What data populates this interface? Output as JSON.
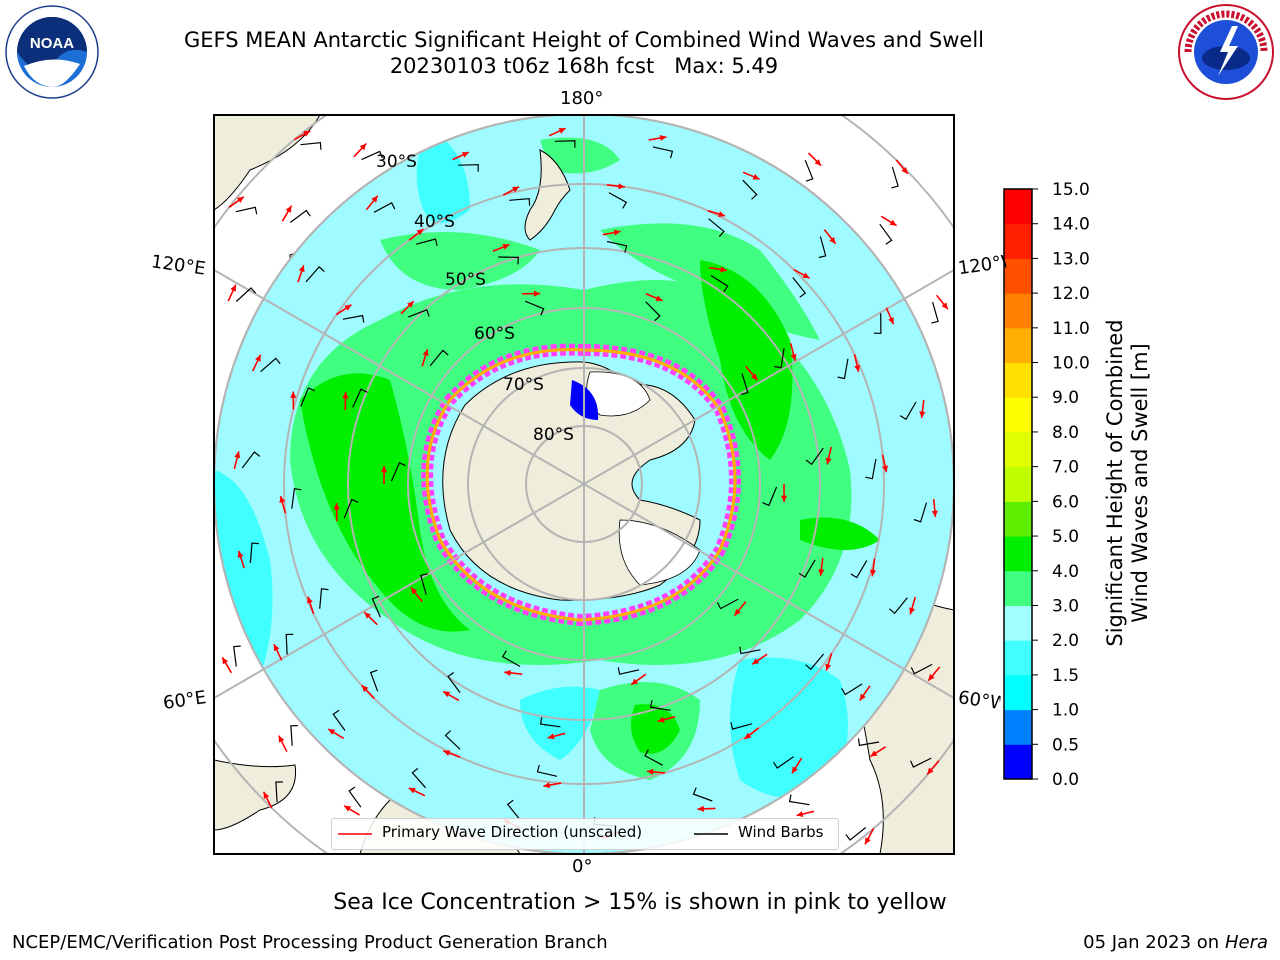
{
  "header": {
    "title_line1": "GEFS MEAN Antarctic Significant Height of Combined Wind Waves and Swell",
    "title_line2": "20230103 t06z 168h fcst   Max: 5.49"
  },
  "logos": {
    "left": {
      "text": "NOAA",
      "ring_text": "NATIONAL OCEANIC AND ATMOSPHERIC ADMINISTRATION · U.S. DEPARTMENT OF COMMERCE"
    },
    "right": {
      "ring_text": "NATIONAL WEATHER SERVICE"
    }
  },
  "map": {
    "longitude_labels": {
      "top": "180°",
      "bottom": "0°",
      "upper_left": "120°E",
      "upper_right": "120°W",
      "lower_left": "60°E",
      "lower_right": "60°W"
    },
    "latitude_labels": [
      "30°S",
      "40°S",
      "50°S",
      "60°S",
      "70°S",
      "80°S"
    ],
    "colors": {
      "ocean_outer": "#9ffbff",
      "land": "#efeddc",
      "graticule": "#b4b4b4",
      "wave_arrow": "#ff0000",
      "barb": "#000000"
    }
  },
  "colorbar": {
    "label_line1": "Significant Height of Combined",
    "label_line2": "Wind Waves and Swell [m]",
    "ticks": [
      "0.0",
      "0.5",
      "1.0",
      "1.5",
      "2.0",
      "3.0",
      "4.0",
      "5.0",
      "6.0",
      "7.0",
      "8.0",
      "9.0",
      "10.0",
      "11.0",
      "12.0",
      "13.0",
      "14.0",
      "15.0"
    ],
    "colors": [
      "#0000ff",
      "#0080ff",
      "#00ffff",
      "#40ffff",
      "#a0ffff",
      "#40ff80",
      "#00ee00",
      "#60ee00",
      "#c0ff00",
      "#e0ff00",
      "#ffff00",
      "#ffe000",
      "#ffb000",
      "#ff8000",
      "#ff5000",
      "#ff2000",
      "#ff0000"
    ]
  },
  "legend": {
    "item1": "Primary Wave Direction (unscaled)",
    "item2": "Wind Barbs"
  },
  "caption": "Sea Ice Concentration > 15% is shown in pink to yellow",
  "footer": {
    "left": "NCEP/EMC/Verification Post Processing Product Generation Branch",
    "right_date": "05 Jan 2023 on ",
    "right_host": "Hera"
  }
}
